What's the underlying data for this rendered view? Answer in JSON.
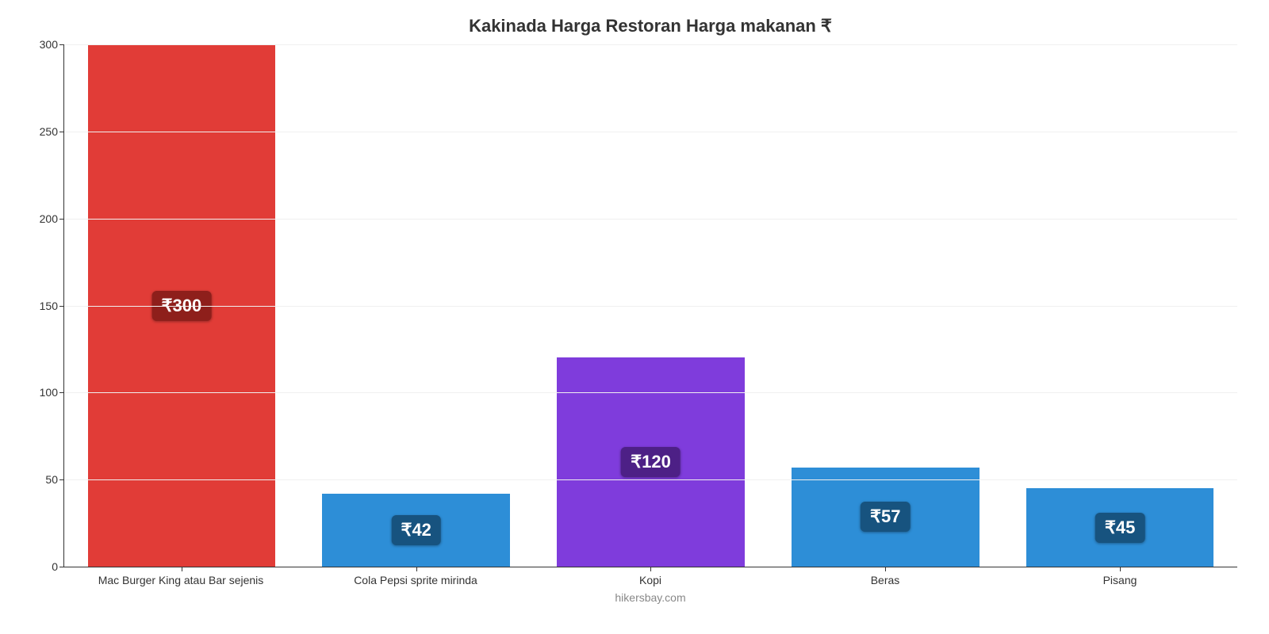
{
  "chart": {
    "type": "bar",
    "title": "Kakinada Harga Restoran Harga makanan ₹",
    "title_fontsize": 22,
    "footer": "hikersbay.com",
    "footer_fontsize": 14,
    "background_color": "#ffffff",
    "grid_color": "#f0f0f0",
    "axis_color": "#333333",
    "label_fontsize": 14,
    "tick_fontsize": 14,
    "ylim": [
      0,
      300
    ],
    "ytick_step": 50,
    "yticks": [
      0,
      50,
      100,
      150,
      200,
      250,
      300
    ],
    "bar_width_pct": 80,
    "categories": [
      "Mac Burger King atau Bar sejenis",
      "Cola Pepsi sprite mirinda",
      "Kopi",
      "Beras",
      "Pisang"
    ],
    "values": [
      300,
      42,
      120,
      57,
      45
    ],
    "value_labels": [
      "₹300",
      "₹42",
      "₹120",
      "₹57",
      "₹45"
    ],
    "bar_colors": [
      "#e13c37",
      "#2d8ed7",
      "#7f3cdc",
      "#2d8ed7",
      "#2d8ed7"
    ],
    "badge_colors": [
      "#8e1f1b",
      "#17537f",
      "#4d2086",
      "#17537f",
      "#17537f"
    ],
    "badge_fontsize": 22,
    "badge_offset_ratio": 0.5
  }
}
